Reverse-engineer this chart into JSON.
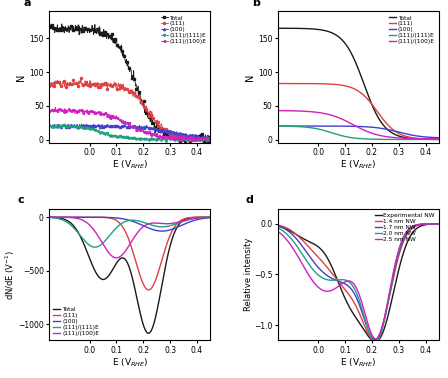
{
  "panel_labels": [
    "a",
    "b",
    "c",
    "d"
  ],
  "colors_abcd": [
    "#1a1a1a",
    "#e04040",
    "#4040cc",
    "#20a080",
    "#d020c0"
  ],
  "colors_d": [
    "#1a1a1a",
    "#e04040",
    "#4040cc",
    "#20a080",
    "#d020c0"
  ],
  "legend_labels": [
    "Total",
    "(111)",
    "(100)",
    "(111)/(111)E",
    "(111)/(100)E"
  ],
  "legend_labels_d": [
    "Experimental NW",
    "1.4 nm NW",
    "1.7 nm NW",
    "2.0 nm NW",
    "2.5 nm NW"
  ],
  "xlabel": "E (V$_{RHE}$)",
  "ylabel_ab": "N",
  "ylabel_c": "dN/dE (V$^{-1}$)",
  "ylabel_d": "Relative intensity",
  "xlim": [
    -0.15,
    0.45
  ],
  "ylim_ab": [
    -5,
    190
  ],
  "ylim_c": [
    -1150,
    80
  ],
  "ylim_d": [
    -1.15,
    0.15
  ]
}
